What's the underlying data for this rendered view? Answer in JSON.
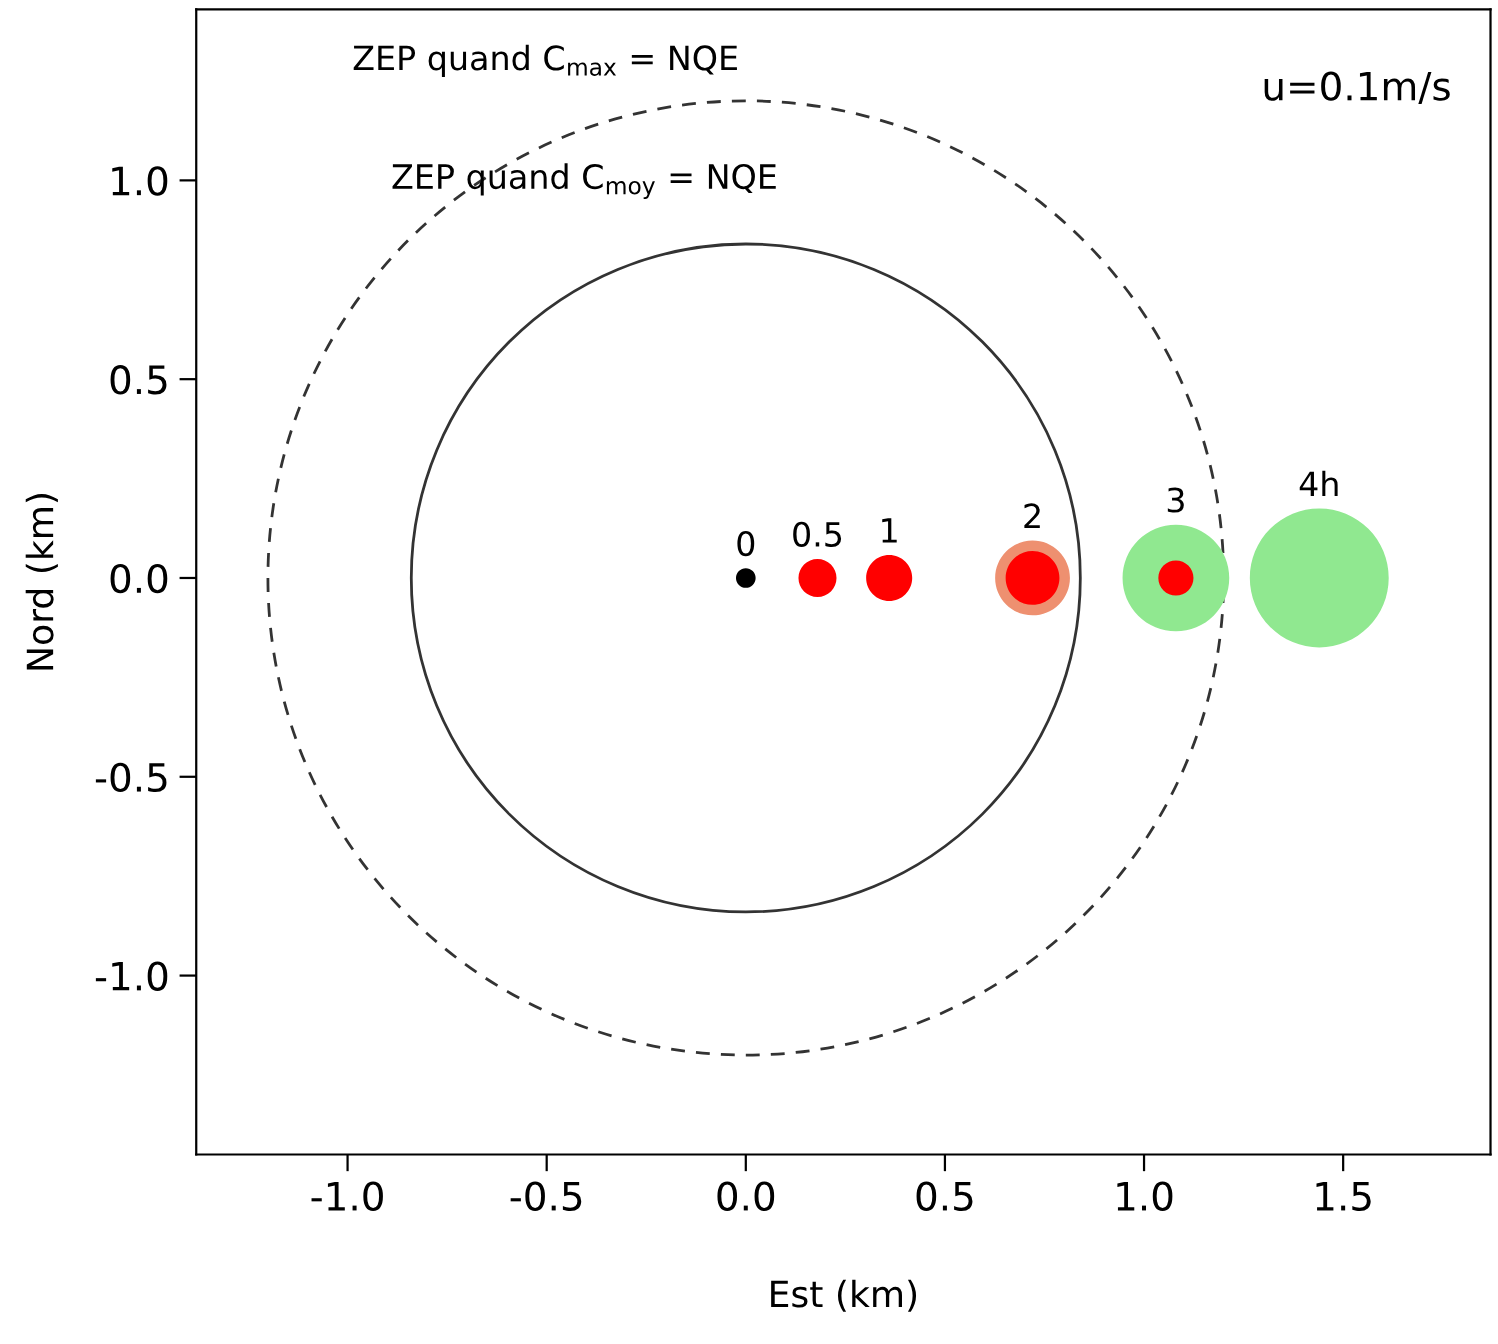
{
  "chart_data": {
    "type": "bubble",
    "xlabel": "Est (km)",
    "ylabel": "Nord (km)",
    "xlim": [
      -1.38,
      1.87
    ],
    "ylim": [
      -1.45,
      1.43
    ],
    "xticks": [
      {
        "value": -1,
        "label": "-1.0"
      },
      {
        "value": -0.5,
        "label": "-0.5"
      },
      {
        "value": 0,
        "label": "0.0"
      },
      {
        "value": 0.5,
        "label": "0.5"
      },
      {
        "value": 1,
        "label": "1.0"
      },
      {
        "value": 1.5,
        "label": "1.5"
      }
    ],
    "yticks": [
      {
        "value": -1,
        "label": "-1.0"
      },
      {
        "value": -0.5,
        "label": "-0.5"
      },
      {
        "value": 0,
        "label": "0.0"
      },
      {
        "value": 0.5,
        "label": "0.5"
      },
      {
        "value": 1,
        "label": "1.0"
      }
    ],
    "grid": false,
    "legend": false,
    "annotations": [
      "ZEP quand C$_{max}$ = NQE",
      "ZEP quand C$_{moy}$ = NQE",
      "u=0.1m/s",
      {
        "text": "0",
        "x": 0,
        "y": 0
      },
      {
        "text": "0.5",
        "x": 0.18,
        "y": 0
      },
      {
        "text": "1",
        "x": 0.36,
        "y": 0
      },
      {
        "text": "2",
        "x": 0.72,
        "y": 0
      },
      {
        "text": "3",
        "x": 1.08,
        "y": 0
      },
      {
        "text": "4h",
        "x": 1.44,
        "y": 0
      }
    ],
    "series": [
      {
        "color": "#000000",
        "x": [
          0
        ],
        "values": [
          0
        ],
        "sizes": [
          0.02
        ]
      },
      {
        "color": "#ee9070",
        "x": [
          0.72
        ],
        "values": [
          0
        ],
        "sizes": [
          0.29
        ]
      },
      {
        "color": "#90e890",
        "x": [
          1.08,
          1.44
        ],
        "values": [
          0,
          0
        ],
        "sizes": [
          0.59,
          1
        ]
      },
      {
        "color": "#ff0000",
        "x": [
          0.18,
          0.36,
          0.72,
          1.08
        ],
        "values": [
          0,
          0,
          0,
          0
        ],
        "sizes": [
          0.075,
          0.11,
          0.15,
          0.064
        ]
      }
    ]
  }
}
